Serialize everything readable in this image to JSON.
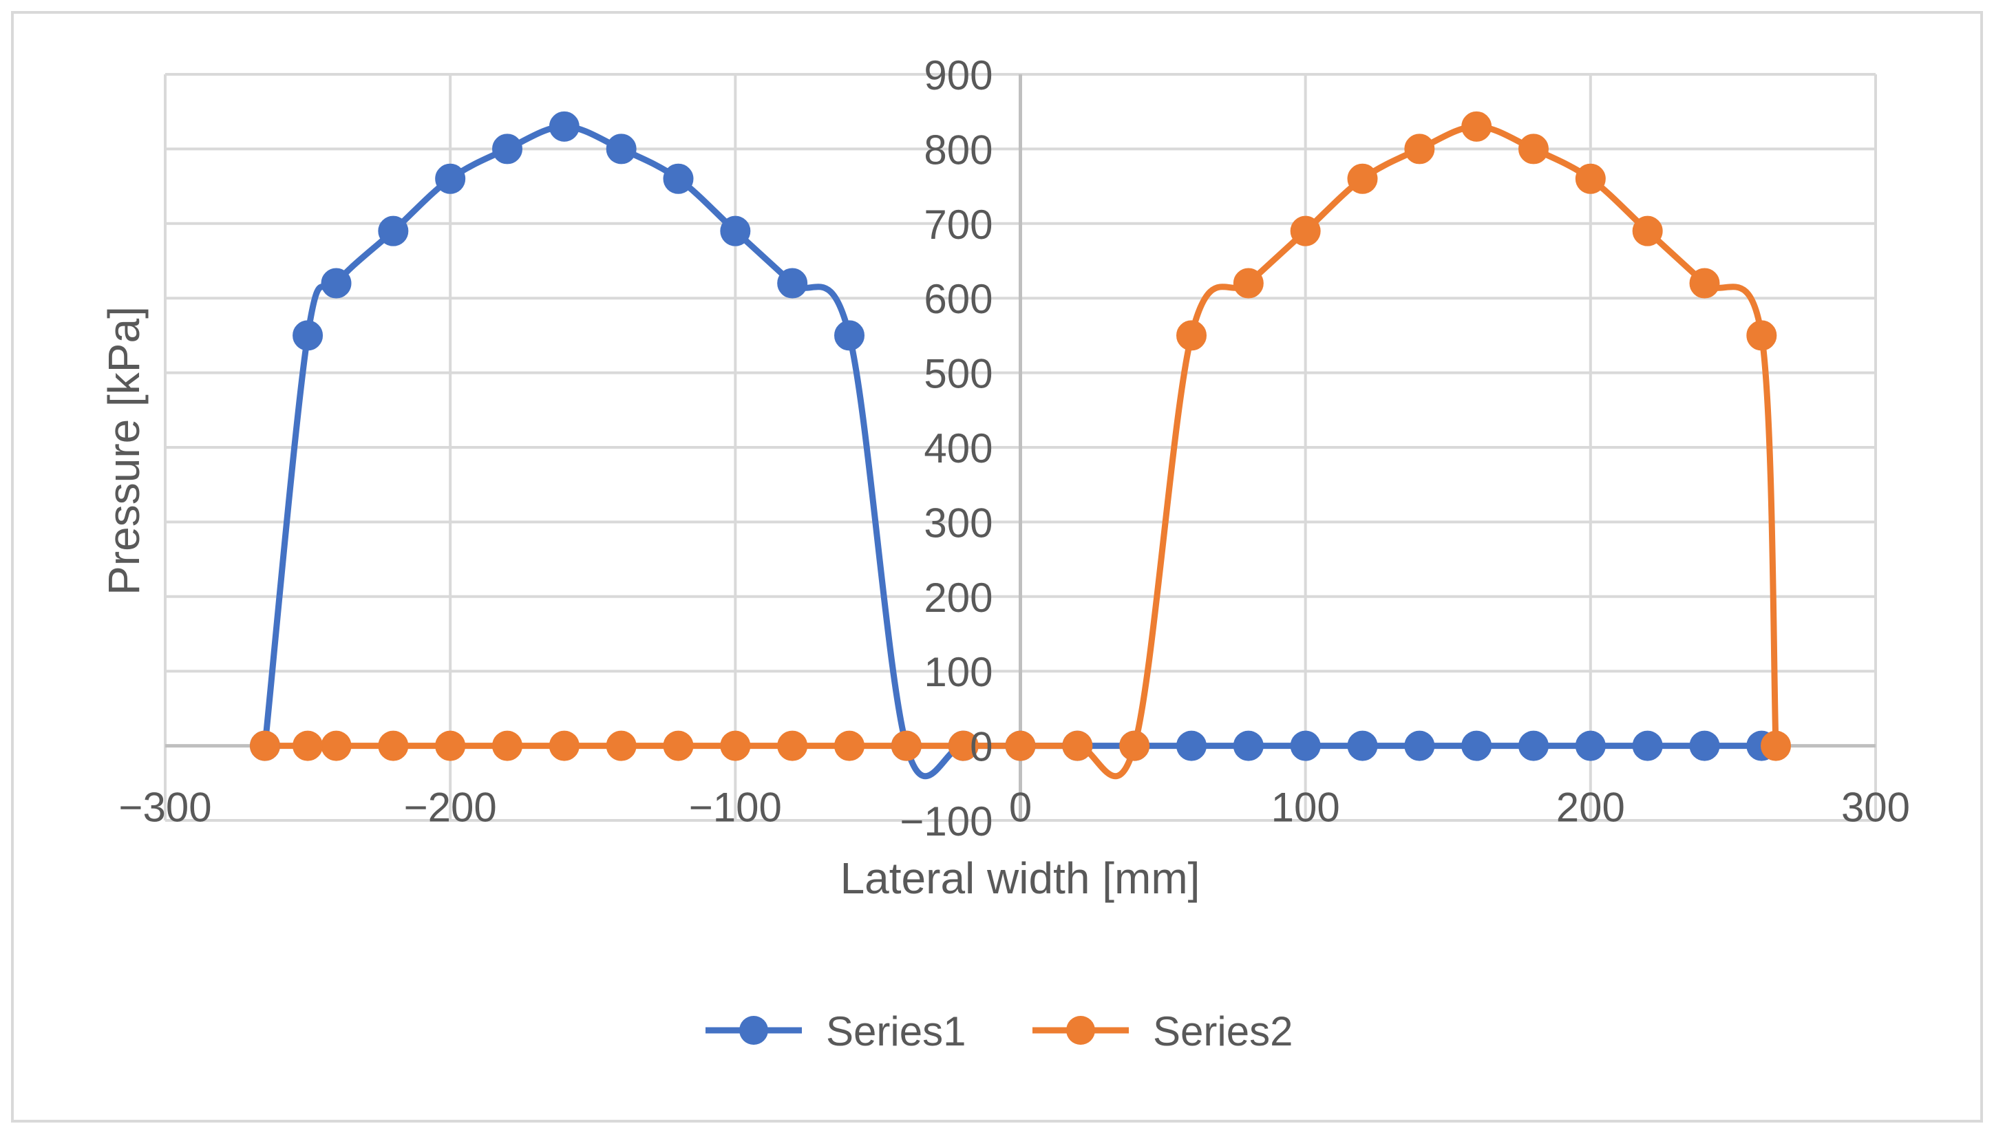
{
  "chart_data": {
    "type": "scatter",
    "style": "smoothed-line-with-markers",
    "xlabel": "Lateral width [mm]",
    "ylabel": "Pressure [kPa]",
    "xlim": [
      -300,
      300
    ],
    "ylim": [
      -100,
      900
    ],
    "x_ticks": [
      -300,
      -200,
      -100,
      0,
      100,
      200,
      300
    ],
    "x_tick_labels": [
      "−300",
      "−200",
      "−100",
      "0",
      "100",
      "200",
      "300"
    ],
    "y_ticks": [
      -100,
      0,
      100,
      200,
      300,
      400,
      500,
      600,
      700,
      800,
      900
    ],
    "y_tick_labels": [
      "−100",
      "0",
      "100",
      "200",
      "300",
      "400",
      "500",
      "600",
      "700",
      "800",
      "900"
    ],
    "grid": true,
    "legend_position": "bottom",
    "series": [
      {
        "name": "Series1",
        "color": "#4472C4",
        "x": [
          -265,
          -250,
          -240,
          -220,
          -200,
          -180,
          -160,
          -140,
          -120,
          -100,
          -80,
          -60,
          -40,
          -20,
          0,
          20,
          40,
          60,
          80,
          100,
          120,
          140,
          160,
          180,
          200,
          220,
          240,
          260
        ],
        "y": [
          0,
          550,
          620,
          690,
          760,
          800,
          830,
          800,
          760,
          690,
          620,
          550,
          0,
          0,
          0,
          0,
          0,
          0,
          0,
          0,
          0,
          0,
          0,
          0,
          0,
          0,
          0,
          0
        ]
      },
      {
        "name": "Series2",
        "color": "#ED7D31",
        "x": [
          -265,
          -250,
          -240,
          -220,
          -200,
          -180,
          -160,
          -140,
          -120,
          -100,
          -80,
          -60,
          -40,
          -20,
          0,
          20,
          40,
          60,
          80,
          100,
          120,
          140,
          160,
          180,
          200,
          220,
          240,
          260,
          265
        ],
        "y": [
          0,
          0,
          0,
          0,
          0,
          0,
          0,
          0,
          0,
          0,
          0,
          0,
          0,
          0,
          0,
          0,
          0,
          550,
          620,
          690,
          760,
          800,
          830,
          800,
          760,
          690,
          620,
          550,
          0
        ]
      }
    ],
    "colors": {
      "grid": "#D9D9D9",
      "axis": "#BFBFBF",
      "text": "#595959",
      "border": "#D9D9D9"
    }
  }
}
